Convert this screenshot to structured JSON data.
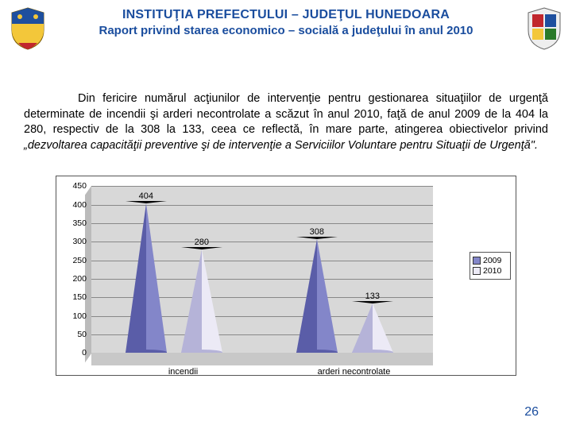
{
  "header": {
    "title": "INSTITUŢIA PREFECTULUI – JUDEŢUL HUNEDOARA",
    "subtitle": "Raport privind starea economico – socială a judeţului în anul 2010"
  },
  "paragraph": "Din fericire numărul acţiunilor de intervenţie pentru gestionarea situaţiilor de urgenţă determinate de incendii şi arderi necontrolate a scăzut în anul 2010, faţă de anul 2009 de la 404 la 280, respectiv de la 308 la 133, ceea ce reflectă, în mare parte, atingerea obiectivelor privind „dezvoltarea capacităţii preventive şi de intervenţie a Serviciilor Voluntare pentru Situaţii de Urgenţă\".",
  "chart": {
    "type": "cone",
    "y_max": 450,
    "y_min": 0,
    "y_step": 50,
    "y_ticks": [
      "450",
      "400",
      "350",
      "300",
      "250",
      "200",
      "150",
      "100",
      "50",
      "0"
    ],
    "categories": [
      "incendii",
      "arderi necontrolate"
    ],
    "series": [
      {
        "name": "2009",
        "color": "#8386c9",
        "edge": "#5a5da8",
        "values": [
          404,
          308
        ]
      },
      {
        "name": "2010",
        "color": "#eceaf6",
        "edge": "#b5b3d8",
        "values": [
          280,
          133
        ]
      }
    ],
    "background_wall": "#d8d8d8",
    "grid_color": "#888888",
    "label_fontsize": 11
  },
  "page_number": "26",
  "coat_of_arms": {
    "shield_blue": "#1e4f9e",
    "shield_yellow": "#f3c73a",
    "shield_red": "#c1272d"
  }
}
